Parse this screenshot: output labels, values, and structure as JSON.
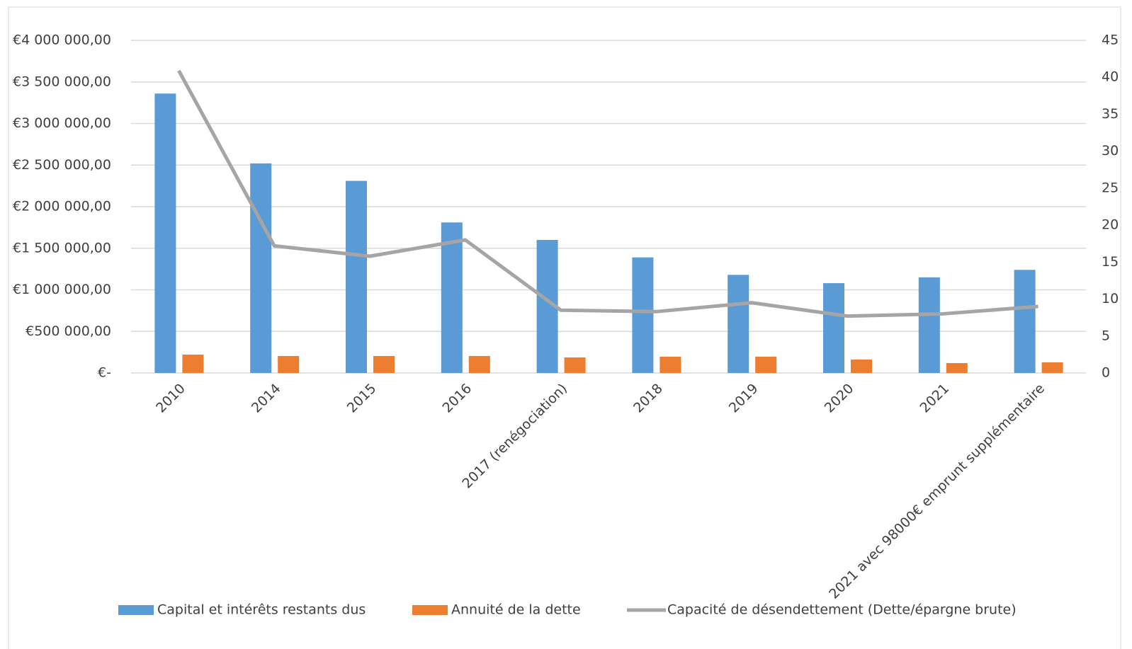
{
  "chart_data": {
    "type": "bar-line",
    "categories": [
      "2010",
      "2014",
      "2015",
      "2016",
      "2017 (renégociation)",
      "2018",
      "2019",
      "2020",
      "2021",
      "2021 avec 98000€ emprunt supplémentaire"
    ],
    "series": [
      {
        "name": "Capital et intérêts restants dus",
        "color": "#5b9bd5",
        "type": "bar",
        "values": [
          3360000,
          2520000,
          2310000,
          1810000,
          1600000,
          1390000,
          1180000,
          1080000,
          1150000,
          1240000
        ]
      },
      {
        "name": "Annuité de la dette",
        "color": "#ed7d31",
        "type": "bar",
        "values": [
          221000,
          204000,
          204000,
          204000,
          187000,
          196000,
          196000,
          162000,
          119000,
          128000
        ]
      },
      {
        "name": "Capacité de désendettement (Dette/épargne brute)",
        "color": "#a5a5a5",
        "type": "line",
        "axis": "y2",
        "values": [
          40.9,
          17.2,
          15.8,
          18.0,
          8.5,
          8.3,
          9.5,
          7.7,
          8.0,
          9.0
        ]
      }
    ],
    "ylim": [
      0,
      4000000
    ],
    "yticks": [
      {
        "value": 0,
        "label": "€-"
      },
      {
        "value": 500000,
        "label": "€500 000,00"
      },
      {
        "value": 1000000,
        "label": "€1 000 000,00"
      },
      {
        "value": 1500000,
        "label": "€1 500 000,00"
      },
      {
        "value": 2000000,
        "label": "€2 000 000,00"
      },
      {
        "value": 2500000,
        "label": "€2 500 000,00"
      },
      {
        "value": 3000000,
        "label": "€3 000 000,00"
      },
      {
        "value": 3500000,
        "label": "€3 500 000,00"
      },
      {
        "value": 4000000,
        "label": "€4 000 000,00"
      }
    ],
    "y2lim": [
      0,
      45
    ],
    "y2ticks": [
      0,
      5,
      10,
      15,
      20,
      25,
      30,
      35,
      40,
      45
    ],
    "grid": true
  }
}
